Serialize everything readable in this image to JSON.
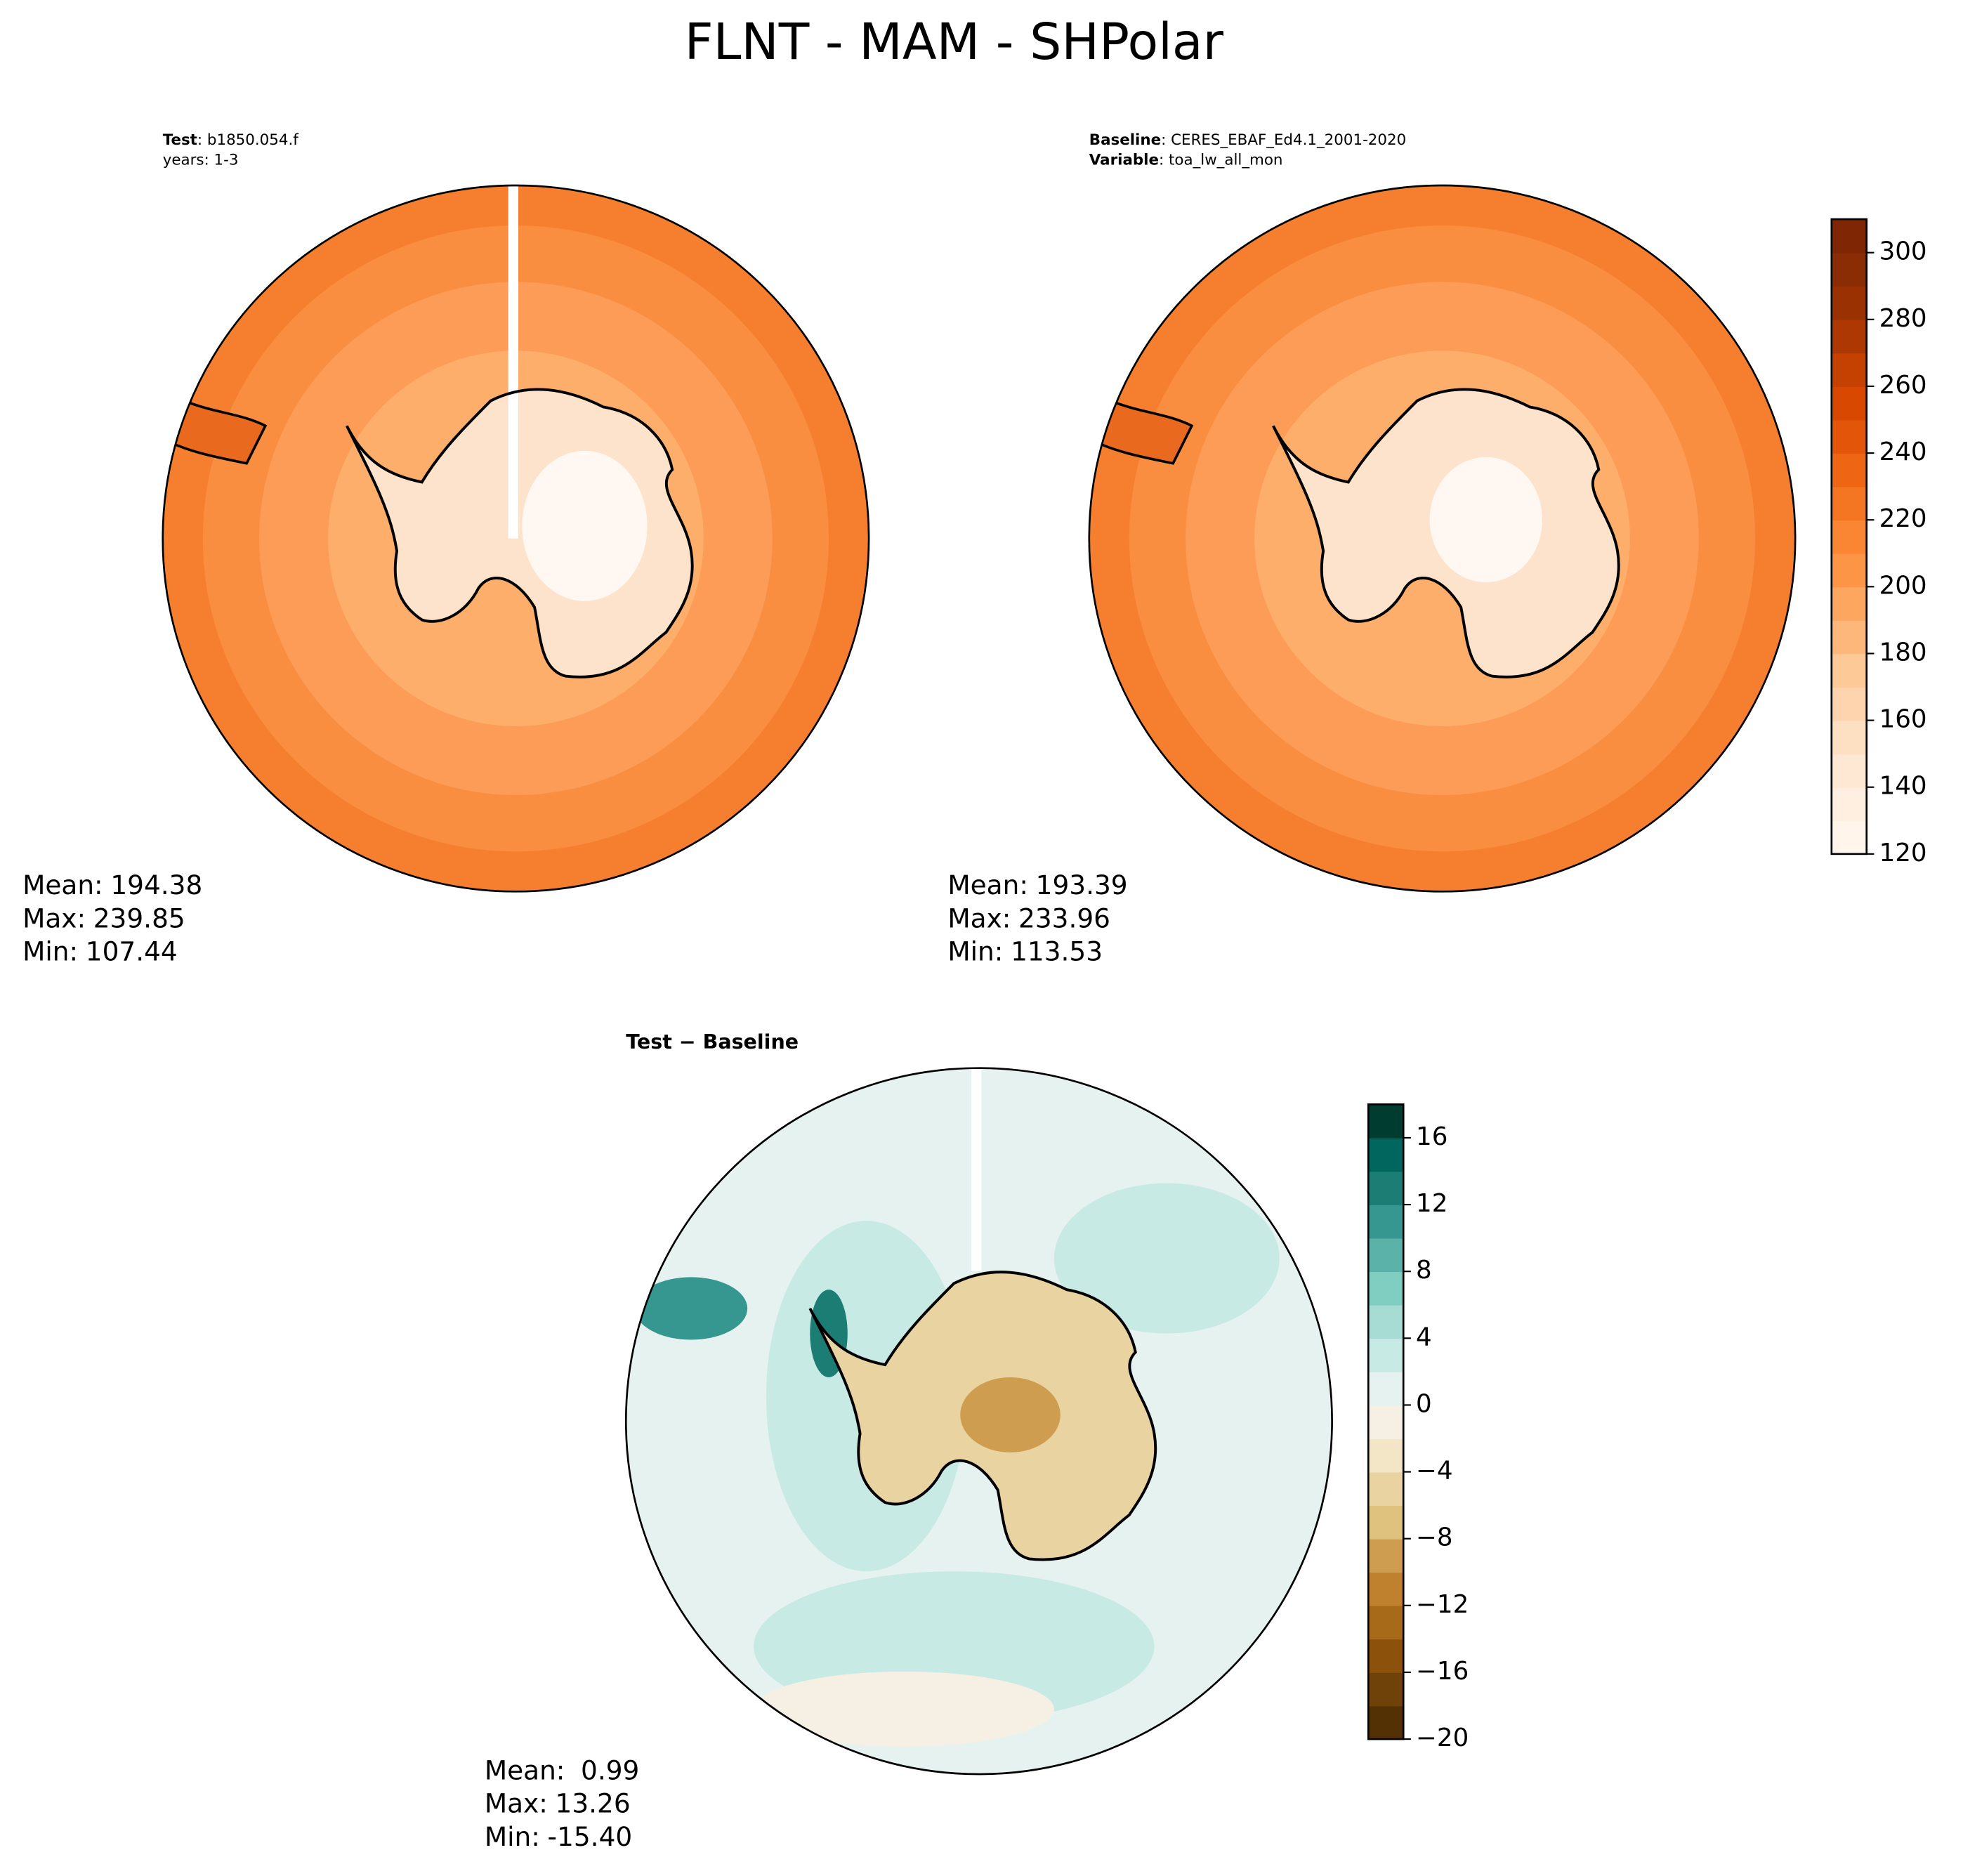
{
  "title": "FLNT - MAM - SHPolar",
  "chart_data": [
    {
      "type": "polar-map",
      "header": [
        {
          "key": "Test",
          "text": ": b1850.054.f"
        },
        {
          "text": "years: 1-3"
        }
      ],
      "stats": {
        "names": [
          "Mean:",
          "Max:",
          "Min:"
        ],
        "values": [
          194.38,
          239.85,
          107.44
        ],
        "value_labels": [
          "194.38",
          "239.85",
          "107.44"
        ]
      }
    },
    {
      "type": "polar-map",
      "header": [
        {
          "key": "Baseline",
          "text": ": CERES_EBAF_Ed4.1_2001-2020"
        },
        {
          "key": "Variable",
          "text": ": toa_lw_all_mon"
        }
      ],
      "stats": {
        "names": [
          "Mean:",
          "Max:",
          "Min:"
        ],
        "values": [
          193.39,
          233.96,
          113.53
        ],
        "value_labels": [
          "193.39",
          "233.96",
          "113.53"
        ]
      },
      "colorbar": {
        "ylim": [
          120,
          310
        ],
        "yticks": [
          120,
          140,
          160,
          180,
          200,
          220,
          240,
          260,
          280,
          300
        ],
        "colors": [
          "#fff5eb",
          "#ffefe0",
          "#fee8d3",
          "#fddfc2",
          "#fdd4ad",
          "#fdc997",
          "#fdb77a",
          "#fda660",
          "#fd9547",
          "#fa8532",
          "#f57622",
          "#ee6613",
          "#e35609",
          "#d94801",
          "#c44102",
          "#ad3803",
          "#9a3103",
          "#8a2c04",
          "#7f2704"
        ]
      }
    },
    {
      "type": "polar-map",
      "header": [
        {
          "key": "Test − Baseline"
        }
      ],
      "stats": {
        "names": [
          "Mean:",
          "Max:",
          "Min:"
        ],
        "values": [
          0.99,
          13.26,
          -15.4
        ],
        "value_labels": [
          " 0.99",
          "13.26",
          "-15.40"
        ]
      },
      "colorbar": {
        "ylim": [
          -20,
          18
        ],
        "yticks": [
          {
            "value": -20,
            "label": "−20"
          },
          {
            "value": -16,
            "label": "−16"
          },
          {
            "value": -12,
            "label": "−12"
          },
          {
            "value": -8,
            "label": "−8"
          },
          {
            "value": -4,
            "label": "−4"
          },
          0,
          4,
          8,
          12,
          16
        ],
        "colors": [
          "#543005",
          "#6f420a",
          "#8c510a",
          "#a66a18",
          "#bf812d",
          "#cf9d4f",
          "#dfc27d",
          "#e9d4a1",
          "#f2e6c7",
          "#f5f0e3",
          "#e6f2ef",
          "#c7eae5",
          "#a6dcd3",
          "#80cdc1",
          "#5bb2a8",
          "#35978f",
          "#1b7d74",
          "#01665e",
          "#003c30"
        ]
      }
    }
  ]
}
